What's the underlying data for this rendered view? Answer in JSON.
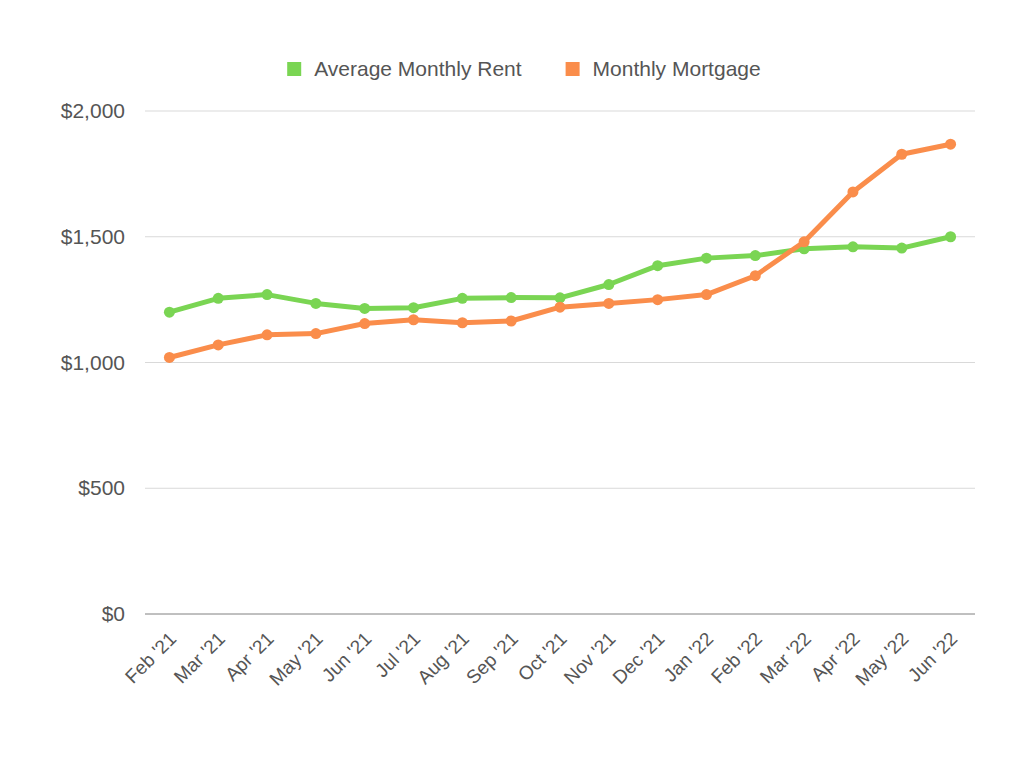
{
  "chart_data": {
    "type": "line",
    "categories": [
      "Feb '21",
      "Mar '21",
      "Apr '21",
      "May '21",
      "Jun '21",
      "Jul '21",
      "Aug '21",
      "Sep '21",
      "Oct '21",
      "Nov '21",
      "Dec '21",
      "Jan '22",
      "Feb '22",
      "Mar '22",
      "Apr '22",
      "May '22",
      "Jun '22"
    ],
    "series": [
      {
        "name": "Average Monthly Rent",
        "color": "#7ad553",
        "marker": "circle",
        "values": [
          1200,
          1255,
          1270,
          1235,
          1215,
          1218,
          1255,
          1258,
          1257,
          1310,
          1385,
          1415,
          1425,
          1452,
          1460,
          1455,
          1500
        ]
      },
      {
        "name": "Monthly Mortgage",
        "color": "#fa8d4b",
        "marker": "circle",
        "values": [
          1020,
          1070,
          1110,
          1115,
          1155,
          1170,
          1158,
          1165,
          1220,
          1235,
          1250,
          1270,
          1345,
          1480,
          1678,
          1828,
          1868
        ]
      }
    ],
    "ylim": [
      0,
      2000
    ],
    "yticks": [
      {
        "value": 0,
        "label": "$0"
      },
      {
        "value": 500,
        "label": "$500"
      },
      {
        "value": 1000,
        "label": "$1,000"
      },
      {
        "value": 1500,
        "label": "$1,500"
      },
      {
        "value": 2000,
        "label": "$2,000"
      }
    ],
    "grid": true,
    "legend": "top"
  }
}
